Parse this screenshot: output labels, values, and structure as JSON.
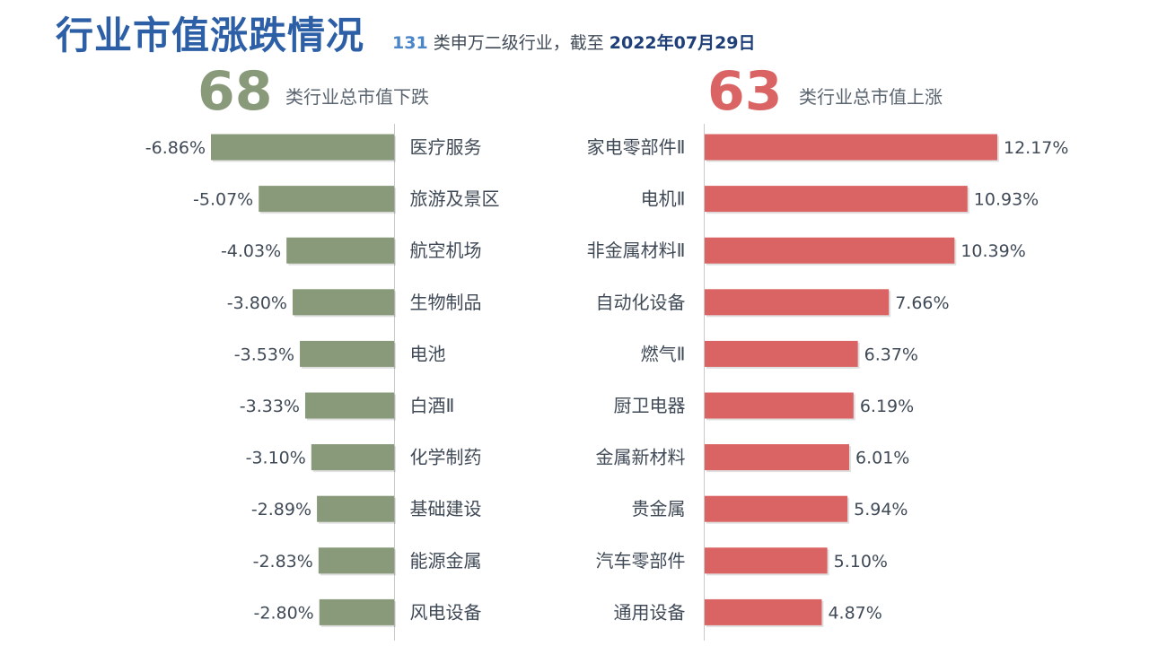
{
  "header": {
    "title": "行业市值涨跌情况",
    "subtitle_count": "131",
    "subtitle_text": " 类申万二级行业，截至 ",
    "subtitle_date": "2022年07月29日"
  },
  "summary": {
    "down_count": "68",
    "down_caption": "类行业总市值下跌",
    "up_count": "63",
    "up_caption": "类行业总市值上涨"
  },
  "colors": {
    "down_bar": "#899a7a",
    "up_bar": "#da6464",
    "axis": "#c9c9c9",
    "label": "#404a57"
  },
  "chart_data": [
    {
      "type": "bar",
      "orientation": "horizontal",
      "title": "",
      "unit": "%",
      "categories": [
        "医疗服务",
        "旅游及景区",
        "航空机场",
        "生物制品",
        "电池",
        "白酒Ⅱ",
        "化学制药",
        "基础建设",
        "能源金属",
        "风电设备"
      ],
      "values": [
        -6.86,
        -5.07,
        -4.03,
        -3.8,
        -3.53,
        -3.33,
        -3.1,
        -2.89,
        -2.83,
        -2.8
      ],
      "value_labels": [
        "-6.86%",
        "-5.07%",
        "-4.03%",
        "-3.80%",
        "-3.53%",
        "-3.33%",
        "-3.10%",
        "-2.89%",
        "-2.83%",
        "-2.80%"
      ],
      "xlim": [
        -6.86,
        0
      ]
    },
    {
      "type": "bar",
      "orientation": "horizontal",
      "title": "",
      "unit": "%",
      "categories": [
        "家电零部件Ⅱ",
        "电机Ⅱ",
        "非金属材料Ⅱ",
        "自动化设备",
        "燃气Ⅱ",
        "厨卫电器",
        "金属新材料",
        "贵金属",
        "汽车零部件",
        "通用设备"
      ],
      "values": [
        12.17,
        10.93,
        10.39,
        7.66,
        6.37,
        6.19,
        6.01,
        5.94,
        5.1,
        4.87
      ],
      "value_labels": [
        "12.17%",
        "10.93%",
        "10.39%",
        "7.66%",
        "6.37%",
        "6.19%",
        "6.01%",
        "5.94%",
        "5.10%",
        "4.87%"
      ],
      "xlim": [
        0,
        12.17
      ]
    }
  ]
}
